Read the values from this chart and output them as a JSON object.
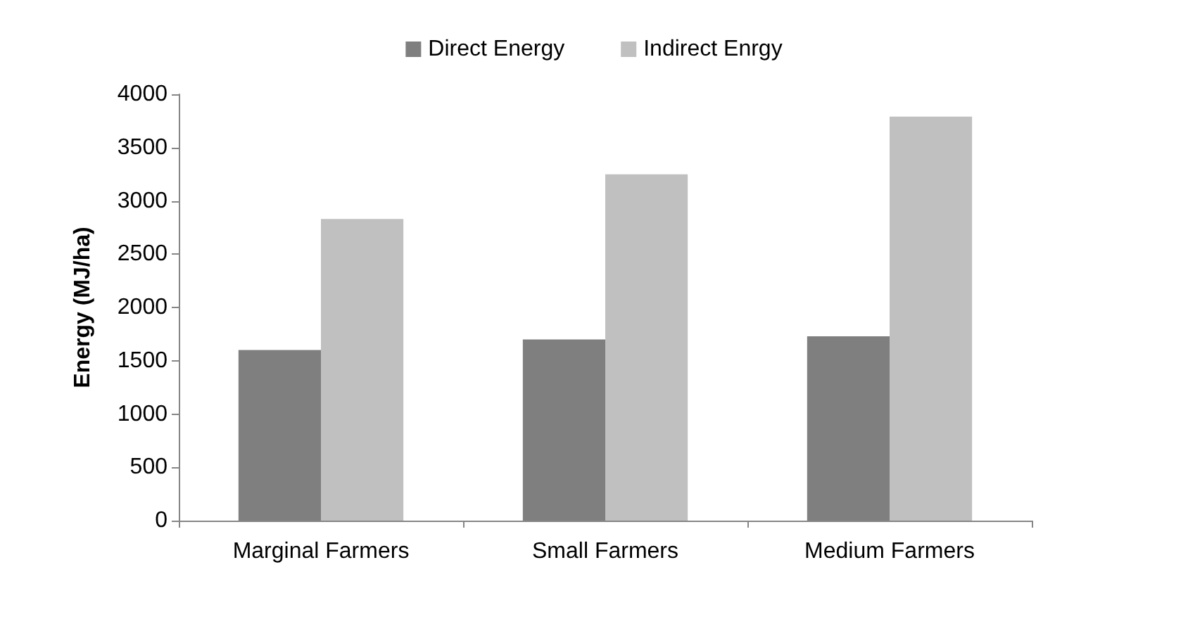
{
  "chart_data": {
    "type": "bar",
    "ylabel": "Energy (MJ/ha)",
    "categories": [
      "Marginal Farmers",
      "Small Farmers",
      "Medium Farmers"
    ],
    "series": [
      {
        "name": "Direct Energy",
        "color": "#7f7f7f",
        "values": [
          1600,
          1700,
          1730
        ]
      },
      {
        "name": "Indirect Enrgy",
        "color": "#c0c0c0",
        "values": [
          2830,
          3250,
          3790
        ]
      }
    ],
    "ylim": [
      0,
      4000
    ],
    "yticks": [
      0,
      500,
      1000,
      1500,
      2000,
      2500,
      3000,
      3500,
      4000
    ],
    "grid": false,
    "legend": "top"
  }
}
